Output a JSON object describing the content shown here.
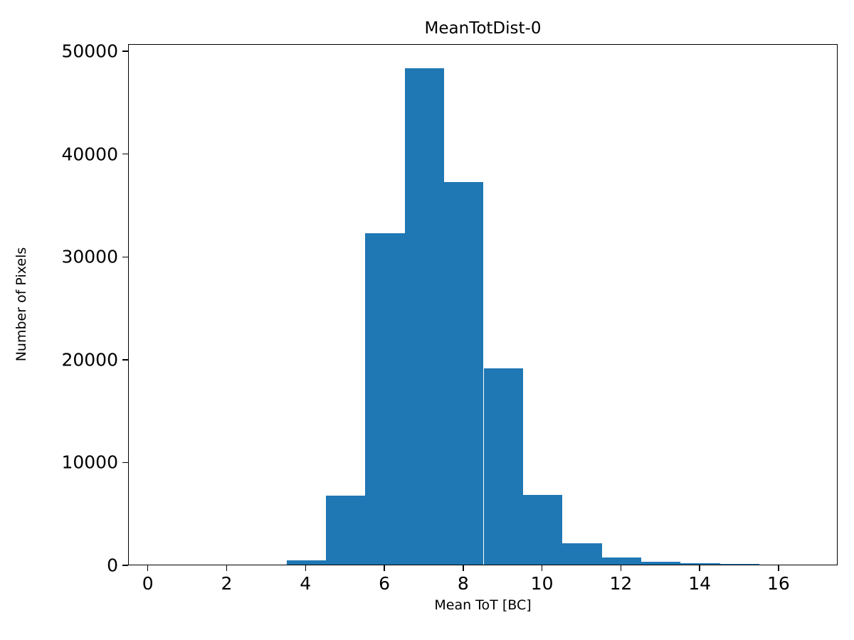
{
  "figure": {
    "background": "#ffffff"
  },
  "chart_data": {
    "type": "bar",
    "subtype": "histogram",
    "title": "MeanTotDist-0",
    "xlabel": "Mean ToT [BC]",
    "ylabel": "Number of Pixels",
    "bar_color": "#1f77b4",
    "bin_width": 1,
    "bin_left_edges": [
      3.5,
      4.5,
      5.5,
      6.5,
      7.5,
      8.5,
      9.5,
      10.5,
      11.5,
      12.5,
      13.5,
      14.5
    ],
    "values": [
      400,
      6700,
      32200,
      48300,
      37200,
      19100,
      6800,
      2100,
      700,
      250,
      120,
      60
    ],
    "xlim": [
      -0.5,
      17.5
    ],
    "ylim": [
      0,
      50700
    ],
    "xticks": [
      0,
      2,
      4,
      6,
      8,
      10,
      12,
      14,
      16
    ],
    "yticks": [
      0,
      10000,
      20000,
      30000,
      40000,
      50000
    ],
    "grid": false,
    "legend_position": "none"
  }
}
